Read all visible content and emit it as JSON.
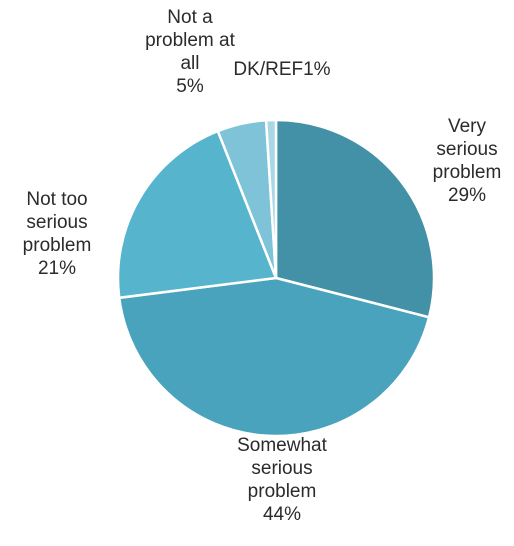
{
  "chart_data": {
    "type": "pie",
    "start": "top",
    "direction": "clockwise",
    "slices": [
      {
        "label": "Very serious problem",
        "value": 29,
        "value_label": "29%",
        "color": "#4391a6",
        "label_lines": [
          "Very",
          "serious",
          "problem",
          "29%"
        ]
      },
      {
        "label": "Somewhat serious problem",
        "value": 44,
        "value_label": "44%",
        "color": "#4aa3bc",
        "label_lines": [
          "Somewhat",
          "serious",
          "problem",
          "44%"
        ]
      },
      {
        "label": "Not too serious problem",
        "value": 21,
        "value_label": "21%",
        "color": "#56b5cc",
        "label_lines": [
          "Not too",
          "serious",
          "problem",
          "21%"
        ]
      },
      {
        "label": "Not a problem at all",
        "value": 5,
        "value_label": "5%",
        "color": "#7ec3d8",
        "label_lines": [
          "Not a",
          "problem at",
          "all",
          "5%"
        ]
      },
      {
        "label": "DK/REF",
        "value": 1,
        "value_label": "1%",
        "color": "#a9d7e6",
        "label_lines": [
          "DK/REF1%"
        ]
      }
    ]
  }
}
